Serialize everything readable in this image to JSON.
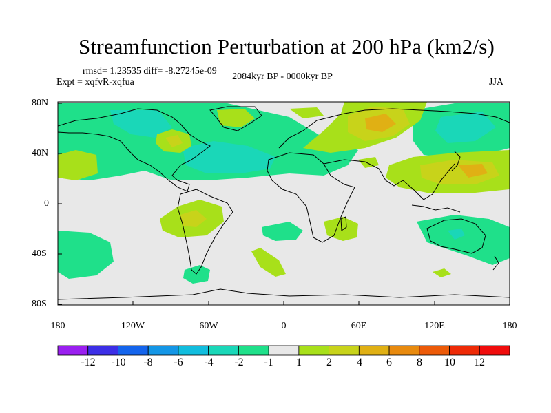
{
  "title": "Streamfunction Perturbation at 200 hPa (km2/s)",
  "stats_line": "rmsd= 1.23535 diff= -8.27245e-09",
  "experiment": "Expt = xqfvR-xqfua",
  "period": "2084kyr BP - 0000kyr BP",
  "season": "JJA",
  "map": {
    "lat_labels": [
      "80N",
      "40N",
      "0",
      "40S",
      "80S"
    ],
    "lon_labels": [
      "180",
      "120W",
      "60W",
      "0",
      "60E",
      "120E",
      "180"
    ]
  },
  "colorbar": {
    "labels": [
      "-12",
      "-10",
      "-8",
      "-6",
      "-4",
      "-2",
      "-1",
      "1",
      "2",
      "4",
      "6",
      "8",
      "10",
      "12"
    ],
    "colors": [
      "#9a1ff0",
      "#3c2ee6",
      "#1464ec",
      "#1496e6",
      "#11bdde",
      "#1ad7b8",
      "#1fe08a",
      "#e8e8e8",
      "#a8e01a",
      "#c8d31a",
      "#e0b014",
      "#e88a0e",
      "#ec5a08",
      "#ee2a06",
      "#f00c0c"
    ]
  },
  "colors": {
    "background_field": "#e8e8e8",
    "coastline": "#000000"
  }
}
